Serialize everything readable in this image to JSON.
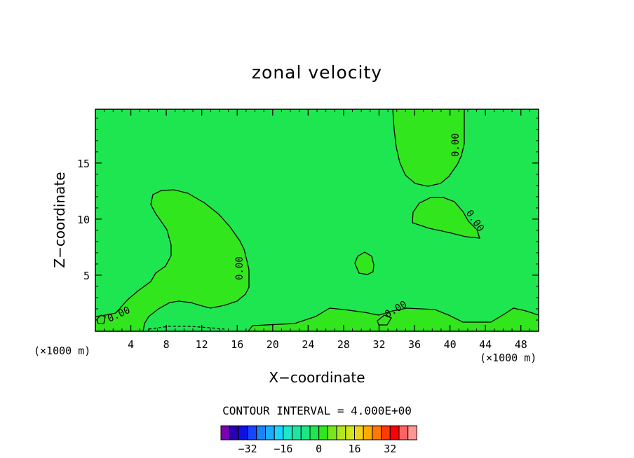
{
  "chart_data": {
    "type": "contour",
    "title": "zonal velocity",
    "xlabel": "X−coordinate",
    "ylabel": "Z−coordinate",
    "x_unit": "(×1000 m)",
    "y_unit": "(×1000 m)",
    "xlim": [
      0,
      50
    ],
    "ylim": [
      0,
      19.8
    ],
    "x_ticks": [
      4,
      8,
      12,
      16,
      20,
      24,
      28,
      32,
      36,
      40,
      44,
      48
    ],
    "y_ticks": [
      5,
      10,
      15
    ],
    "contour_interval_label": "CONTOUR INTERVAL = 4.000E+00",
    "contour_labels": [
      "0.00",
      "0.00",
      "0.00",
      "0.00",
      "0.00",
      "0.00"
    ],
    "colorbar": {
      "tick_labels": [
        "−32",
        "−16",
        "0",
        "16",
        "32"
      ],
      "tick_values": [
        -32,
        -16,
        0,
        16,
        32
      ],
      "levels": [
        -40,
        -36,
        -32,
        -28,
        -24,
        -20,
        -16,
        -12,
        -8,
        -4,
        0,
        4,
        8,
        12,
        16,
        20,
        24,
        28,
        32,
        36,
        40
      ],
      "colors": [
        "#7a00b4",
        "#2800b4",
        "#1010e6",
        "#1646ff",
        "#1e82ff",
        "#1eaaff",
        "#1ed2ff",
        "#1ee6c8",
        "#1ee6a0",
        "#1ee682",
        "#1ee650",
        "#32e61e",
        "#78e61e",
        "#b4e61e",
        "#d2e61e",
        "#f0d21e",
        "#ffaa00",
        "#ff7800",
        "#ff3c00",
        "#ff0000",
        "#ff6464",
        "#ff9696"
      ]
    },
    "field_colors": {
      "background": "#1ee650",
      "positive_region": "#32e61e",
      "negative_contour": "#1ee682"
    },
    "regions_positive": [
      {
        "name": "left-bulge",
        "x_range": [
          1,
          17
        ],
        "z_range": [
          0.3,
          12.8
        ]
      },
      {
        "name": "upper-right-lobe",
        "x_range": [
          33.5,
          42
        ],
        "z_range": [
          13,
          19.8
        ]
      },
      {
        "name": "middle-right-lobe",
        "x_range": [
          36,
          43.5
        ],
        "z_range": [
          8.2,
          12.1
        ]
      },
      {
        "name": "small-blob",
        "x_range": [
          29.5,
          31.6
        ],
        "z_range": [
          5,
          7
        ]
      }
    ]
  }
}
